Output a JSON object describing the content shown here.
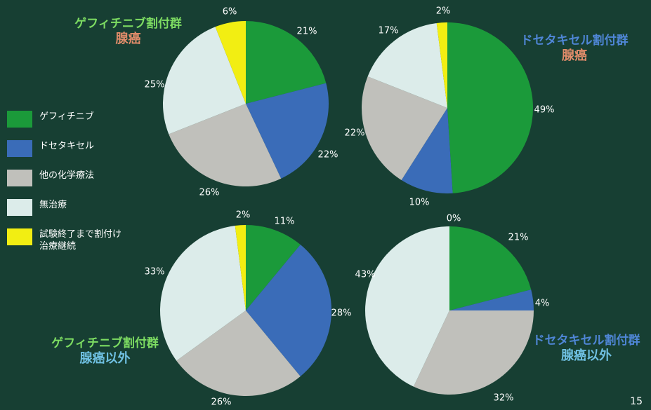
{
  "page_number": "15",
  "legend": [
    {
      "label": "ゲフィチニブ",
      "color": "#1b9a3a"
    },
    {
      "label": "ドセタキセル",
      "color": "#3a6cb8"
    },
    {
      "label": "他の化学療法",
      "color": "#c0c0bb"
    },
    {
      "label": "無治療",
      "color": "#dcecea"
    },
    {
      "label": "試験終了まで割付け\n治療継続",
      "color": "#f2ee12"
    }
  ],
  "chart_data": [
    {
      "type": "pie",
      "title_line1": "ゲフィチニブ割付群",
      "title_line2": "腺癌",
      "title_colors": [
        "#7ddc62",
        "#e08c6a"
      ],
      "categories": [
        "ゲフィチニブ",
        "ドセタキセル",
        "他の化学療法",
        "無治療",
        "試験終了まで割付け治療継続"
      ],
      "values": [
        21,
        22,
        26,
        25,
        6
      ],
      "labels": [
        "21%",
        "22%",
        "26%",
        "25%",
        "6%"
      ]
    },
    {
      "type": "pie",
      "title_line1": "ドセタキセル割付群",
      "title_line2": "腺癌",
      "title_colors": [
        "#4f86d6",
        "#e08c6a"
      ],
      "categories": [
        "ゲフィチニブ",
        "ドセタキセル",
        "他の化学療法",
        "無治療",
        "試験終了まで割付け治療継続"
      ],
      "values": [
        49,
        10,
        22,
        17,
        2
      ],
      "labels": [
        "49%",
        "10%",
        "22%",
        "17%",
        "2%"
      ]
    },
    {
      "type": "pie",
      "title_line1": "ゲフィチニブ割付群",
      "title_line2": "腺癌以外",
      "title_colors": [
        "#7ddc62",
        "#6fc0e2"
      ],
      "categories": [
        "ゲフィチニブ",
        "ドセタキセル",
        "他の化学療法",
        "無治療",
        "試験終了まで割付け治療継続"
      ],
      "values": [
        11,
        28,
        26,
        33,
        2
      ],
      "labels": [
        "11%",
        "28%",
        "26%",
        "33%",
        "2%"
      ]
    },
    {
      "type": "pie",
      "title_line1": "ドセタキセル割付群",
      "title_line2": "腺癌以外",
      "title_colors": [
        "#4f86d6",
        "#6fc0e2"
      ],
      "categories": [
        "ゲフィチニブ",
        "ドセタキセル",
        "他の化学療法",
        "無治療",
        "試験終了まで割付け治療継続"
      ],
      "values": [
        21,
        4,
        32,
        43,
        0
      ],
      "labels": [
        "21%",
        "4%",
        "32%",
        "43%",
        "0%"
      ]
    }
  ]
}
